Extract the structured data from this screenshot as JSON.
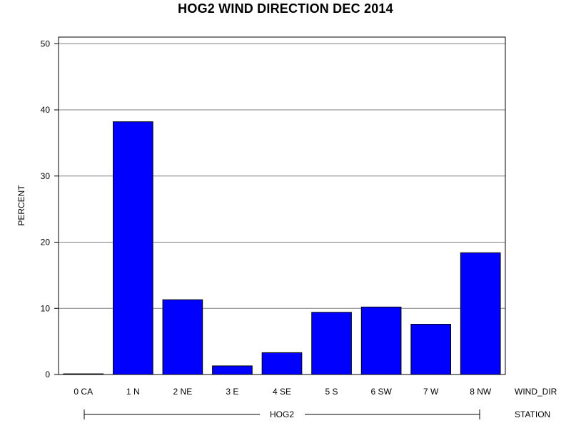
{
  "chart_data": {
    "type": "bar",
    "title": "HOG2 WIND DIRECTION DEC 2014",
    "ylabel": "PERCENT",
    "xlabel": "WIND_DIR",
    "group_axis_label": "STATION",
    "group_label": "HOG2",
    "categories": [
      "0 CA",
      "1 N",
      "2 NE",
      "3 E",
      "4 SE",
      "5 S",
      "6 SW",
      "7 W",
      "8 NW"
    ],
    "values": [
      0.1,
      38.2,
      11.3,
      1.3,
      3.3,
      9.4,
      10.2,
      7.6,
      18.4
    ],
    "ylim": [
      0,
      51
    ],
    "yticks": [
      0,
      10,
      20,
      30,
      40,
      50
    ],
    "grid": true,
    "bar_color": "#0000ff"
  }
}
